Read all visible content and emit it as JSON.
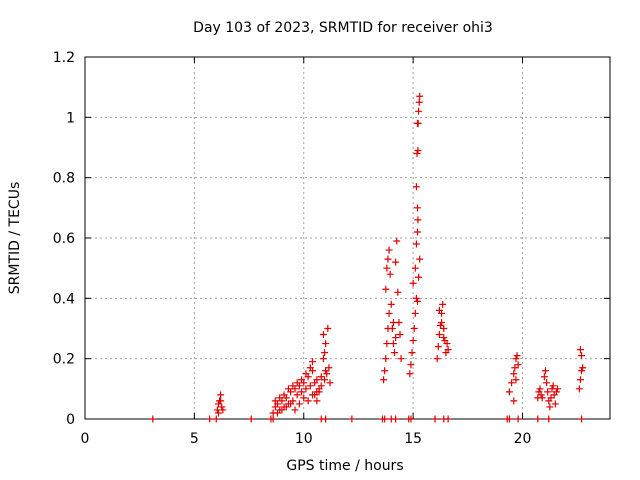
{
  "chart_data": {
    "type": "scatter",
    "title": "Day 103 of 2023, SRMTID for receiver ohi3",
    "xlabel": "GPS time / hours",
    "ylabel": "SRMTID / TECUs",
    "xlim": [
      0,
      24
    ],
    "ylim": [
      0,
      1.2
    ],
    "xticks": [
      0,
      5,
      10,
      15,
      20
    ],
    "xtick_labels": [
      "0",
      "5",
      "10",
      "15",
      "20"
    ],
    "yticks": [
      0,
      0.2,
      0.4,
      0.6,
      0.8,
      1.0,
      1.2
    ],
    "ytick_labels": [
      "0",
      "0.2",
      "0.4",
      "0.6",
      "0.8",
      "1",
      "1.2"
    ],
    "grid": true,
    "marker": "plus",
    "color": "#e00000",
    "series": [
      {
        "name": "SRMTID",
        "points": [
          [
            3.1,
            0.0
          ],
          [
            5.7,
            0.0
          ],
          [
            6.0,
            0.0
          ],
          [
            7.6,
            0.0
          ],
          [
            8.5,
            0.0
          ],
          [
            8.6,
            0.0
          ],
          [
            10.8,
            0.0
          ],
          [
            11.0,
            0.0
          ],
          [
            12.2,
            0.0
          ],
          [
            13.6,
            0.0
          ],
          [
            13.7,
            0.0
          ],
          [
            14.0,
            0.0
          ],
          [
            14.2,
            0.0
          ],
          [
            14.8,
            0.0
          ],
          [
            14.9,
            0.0
          ],
          [
            16.0,
            0.0
          ],
          [
            16.4,
            0.0
          ],
          [
            16.6,
            0.0
          ],
          [
            19.3,
            0.0
          ],
          [
            19.4,
            0.0
          ],
          [
            19.8,
            0.0
          ],
          [
            20.7,
            0.0
          ],
          [
            21.2,
            0.0
          ],
          [
            22.7,
            0.0
          ],
          [
            6.05,
            0.03
          ],
          [
            6.1,
            0.05
          ],
          [
            6.15,
            0.06
          ],
          [
            6.2,
            0.08
          ],
          [
            6.25,
            0.04
          ],
          [
            6.3,
            0.03
          ],
          [
            6.1,
            0.02
          ],
          [
            6.2,
            0.06
          ],
          [
            8.6,
            0.02
          ],
          [
            8.7,
            0.04
          ],
          [
            8.8,
            0.05
          ],
          [
            8.9,
            0.03
          ],
          [
            9.0,
            0.06
          ],
          [
            9.1,
            0.04
          ],
          [
            9.2,
            0.07
          ],
          [
            9.3,
            0.05
          ],
          [
            9.4,
            0.09
          ],
          [
            9.5,
            0.06
          ],
          [
            9.6,
            0.1
          ],
          [
            9.7,
            0.08
          ],
          [
            9.8,
            0.11
          ],
          [
            9.9,
            0.09
          ],
          [
            10.0,
            0.12
          ],
          [
            10.1,
            0.1
          ],
          [
            10.2,
            0.14
          ],
          [
            10.3,
            0.11
          ],
          [
            10.4,
            0.16
          ],
          [
            10.5,
            0.12
          ],
          [
            10.6,
            0.13
          ],
          [
            10.7,
            0.1
          ],
          [
            10.8,
            0.14
          ],
          [
            10.9,
            0.2
          ],
          [
            11.0,
            0.25
          ],
          [
            11.1,
            0.3
          ],
          [
            8.7,
            0.06
          ],
          [
            8.9,
            0.07
          ],
          [
            9.1,
            0.08
          ],
          [
            9.3,
            0.1
          ],
          [
            9.5,
            0.11
          ],
          [
            9.7,
            0.12
          ],
          [
            9.9,
            0.13
          ],
          [
            10.1,
            0.15
          ],
          [
            10.3,
            0.17
          ],
          [
            10.4,
            0.19
          ],
          [
            10.5,
            0.08
          ],
          [
            10.6,
            0.06
          ],
          [
            10.7,
            0.09
          ],
          [
            10.8,
            0.11
          ],
          [
            10.95,
            0.13
          ],
          [
            11.05,
            0.15
          ],
          [
            11.15,
            0.17
          ],
          [
            11.2,
            0.12
          ],
          [
            8.8,
            0.02
          ],
          [
            9.0,
            0.03
          ],
          [
            9.2,
            0.04
          ],
          [
            9.4,
            0.05
          ],
          [
            9.6,
            0.03
          ],
          [
            9.8,
            0.05
          ],
          [
            10.0,
            0.07
          ],
          [
            10.2,
            0.06
          ],
          [
            10.4,
            0.08
          ],
          [
            10.6,
            0.09
          ],
          [
            10.9,
            0.28
          ],
          [
            10.95,
            0.22
          ],
          [
            11.0,
            0.16
          ],
          [
            13.65,
            0.13
          ],
          [
            13.7,
            0.16
          ],
          [
            13.75,
            0.2
          ],
          [
            13.8,
            0.25
          ],
          [
            13.85,
            0.3
          ],
          [
            13.9,
            0.35
          ],
          [
            13.75,
            0.43
          ],
          [
            13.8,
            0.5
          ],
          [
            13.85,
            0.53
          ],
          [
            13.9,
            0.56
          ],
          [
            13.95,
            0.48
          ],
          [
            14.0,
            0.38
          ],
          [
            14.05,
            0.3
          ],
          [
            14.1,
            0.25
          ],
          [
            14.15,
            0.22
          ],
          [
            14.2,
            0.52
          ],
          [
            14.25,
            0.59
          ],
          [
            14.3,
            0.42
          ],
          [
            14.35,
            0.32
          ],
          [
            14.4,
            0.28
          ],
          [
            14.45,
            0.2
          ],
          [
            14.1,
            0.32
          ],
          [
            14.2,
            0.27
          ],
          [
            14.85,
            0.15
          ],
          [
            14.9,
            0.18
          ],
          [
            14.95,
            0.22
          ],
          [
            15.0,
            0.26
          ],
          [
            15.05,
            0.3
          ],
          [
            15.1,
            0.35
          ],
          [
            15.15,
            0.4
          ],
          [
            15.0,
            0.45
          ],
          [
            15.1,
            0.5
          ],
          [
            15.15,
            0.58
          ],
          [
            15.2,
            0.62
          ],
          [
            15.22,
            0.66
          ],
          [
            15.2,
            0.7
          ],
          [
            15.15,
            0.77
          ],
          [
            15.18,
            0.88
          ],
          [
            15.22,
            0.89
          ],
          [
            15.2,
            0.98
          ],
          [
            15.23,
            0.98
          ],
          [
            15.25,
            1.02
          ],
          [
            15.28,
            1.05
          ],
          [
            15.3,
            1.07
          ],
          [
            15.3,
            0.53
          ],
          [
            15.25,
            0.47
          ],
          [
            15.2,
            0.39
          ],
          [
            16.1,
            0.2
          ],
          [
            16.15,
            0.24
          ],
          [
            16.2,
            0.28
          ],
          [
            16.25,
            0.31
          ],
          [
            16.3,
            0.35
          ],
          [
            16.35,
            0.38
          ],
          [
            16.4,
            0.3
          ],
          [
            16.45,
            0.26
          ],
          [
            16.5,
            0.22
          ],
          [
            16.55,
            0.25
          ],
          [
            16.6,
            0.23
          ],
          [
            16.2,
            0.36
          ],
          [
            16.3,
            0.32
          ],
          [
            16.4,
            0.27
          ],
          [
            19.4,
            0.09
          ],
          [
            19.5,
            0.12
          ],
          [
            19.6,
            0.15
          ],
          [
            19.65,
            0.17
          ],
          [
            19.7,
            0.2
          ],
          [
            19.75,
            0.21
          ],
          [
            19.8,
            0.18
          ],
          [
            19.6,
            0.06
          ],
          [
            19.7,
            0.13
          ],
          [
            20.7,
            0.07
          ],
          [
            20.75,
            0.09
          ],
          [
            20.8,
            0.1
          ],
          [
            20.85,
            0.08
          ],
          [
            20.9,
            0.07
          ],
          [
            21.0,
            0.14
          ],
          [
            21.05,
            0.16
          ],
          [
            21.1,
            0.12
          ],
          [
            21.15,
            0.09
          ],
          [
            21.2,
            0.06
          ],
          [
            21.25,
            0.04
          ],
          [
            21.3,
            0.07
          ],
          [
            21.35,
            0.1
          ],
          [
            21.4,
            0.11
          ],
          [
            21.45,
            0.08
          ],
          [
            21.5,
            0.05
          ],
          [
            21.55,
            0.09
          ],
          [
            21.6,
            0.1
          ],
          [
            22.6,
            0.1
          ],
          [
            22.65,
            0.13
          ],
          [
            22.7,
            0.16
          ],
          [
            22.75,
            0.17
          ],
          [
            22.7,
            0.21
          ],
          [
            22.65,
            0.23
          ]
        ]
      }
    ]
  }
}
